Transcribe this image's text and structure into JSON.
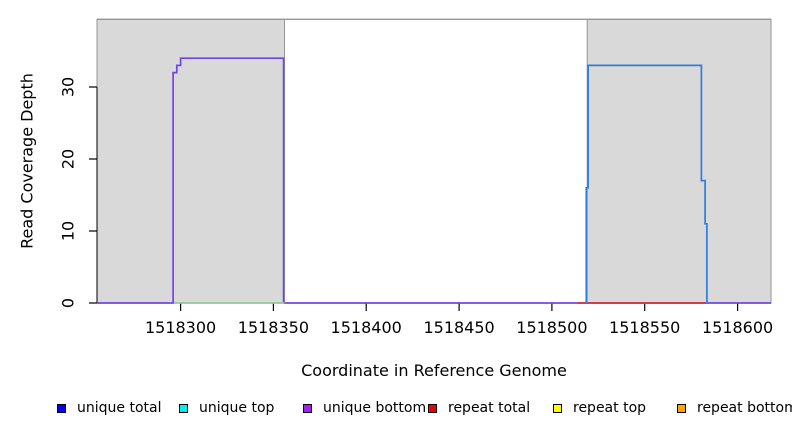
{
  "chart_data": {
    "type": "line",
    "title": "",
    "xlabel": "Coordinate in Reference Genome",
    "ylabel": "Read Coverage Depth",
    "xlim": [
      1518255,
      1518618
    ],
    "ylim": [
      0,
      39.4
    ],
    "x_ticks": [
      1518300,
      1518350,
      1518400,
      1518450,
      1518500,
      1518550,
      1518600
    ],
    "y_ticks": [
      0,
      10,
      20,
      30
    ],
    "grid": false,
    "legend_position": "bottom",
    "frame_color": "#969696",
    "region_fill": "#d9d9d9",
    "shaded_regions": [
      {
        "name": "shaded-region-left",
        "x0": 1518255,
        "x1": 1518356
      },
      {
        "name": "shaded-region-right",
        "x0": 1518519,
        "x1": 1518618
      }
    ],
    "series": [
      {
        "name": "unique-coverage-left",
        "color": "#7245e6",
        "points": [
          [
            1518255,
            0
          ],
          [
            1518296,
            0
          ],
          [
            1518296,
            32
          ],
          [
            1518298,
            32
          ],
          [
            1518298,
            33
          ],
          [
            1518300,
            33
          ],
          [
            1518300,
            34
          ],
          [
            1518355.5,
            34
          ],
          [
            1518355.5,
            0
          ],
          [
            1518618,
            0
          ]
        ]
      },
      {
        "name": "unique-coverage-right",
        "color": "#2e7ce0",
        "points": [
          [
            1518518.5,
            0
          ],
          [
            1518518.5,
            16
          ],
          [
            1518519.5,
            16
          ],
          [
            1518519.5,
            33
          ],
          [
            1518580.5,
            33
          ],
          [
            1518580.5,
            17
          ],
          [
            1518582.5,
            17
          ],
          [
            1518582.5,
            11
          ],
          [
            1518583.5,
            11
          ],
          [
            1518583.5,
            0
          ]
        ]
      }
    ],
    "baseline_segments": [
      {
        "name": "feature-segment-green",
        "color": "#8fca8f",
        "x0": 1518297,
        "x1": 1518356,
        "y": 0
      },
      {
        "name": "repeat-total-segment-red",
        "color": "#e23333",
        "x0": 1518514,
        "x1": 1518583,
        "y": 0
      }
    ],
    "legend": [
      {
        "label": "unique total",
        "color": "#0000ee"
      },
      {
        "label": "unique top",
        "color": "#00eeee"
      },
      {
        "label": "unique bottom",
        "color": "#a020f0"
      },
      {
        "label": "repeat total",
        "color": "#ee0000"
      },
      {
        "label": "repeat top",
        "color": "#ffff00"
      },
      {
        "label": "repeat bottom",
        "color": "#ffa500"
      }
    ]
  }
}
